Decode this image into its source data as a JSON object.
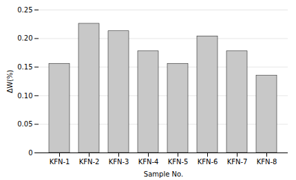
{
  "chart_data": {
    "type": "bar",
    "categories": [
      "KFN-1",
      "KFN-2",
      "KFN-3",
      "KFN-4",
      "KFN-5",
      "KFN-6",
      "KFN-7",
      "KFN-8"
    ],
    "values": [
      0.156,
      0.226,
      0.213,
      0.178,
      0.156,
      0.204,
      0.178,
      0.135
    ],
    "xlabel": "Sample No.",
    "ylabel": "ΔW(%)",
    "color": "#c8c8c8",
    "ylim": [
      0,
      0.25
    ],
    "yticks": [
      0,
      0.05,
      {
        "value": 0.1,
        "label": "0.10"
      },
      0.15,
      {
        "value": 0.2,
        "label": "0.20"
      },
      0.25
    ],
    "grid": true
  }
}
